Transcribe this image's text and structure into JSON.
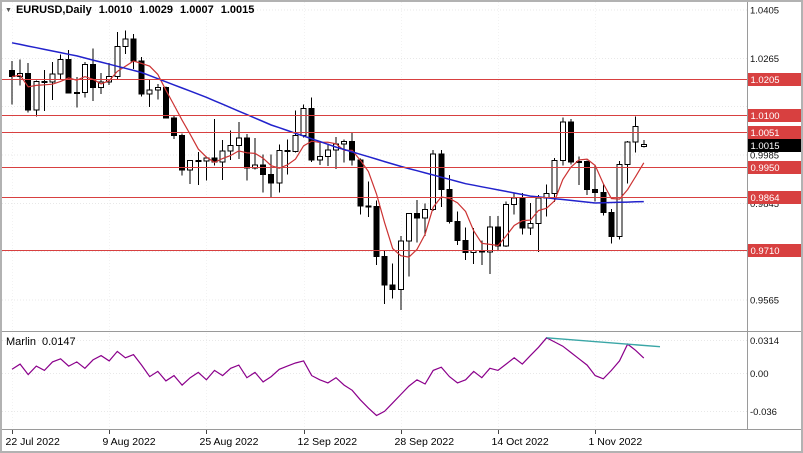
{
  "header": {
    "instrument": "EURUSD,Daily",
    "open": "1.0010",
    "high": "1.0029",
    "low": "1.0007",
    "close": "1.0015"
  },
  "indicator_header": {
    "name": "Marlin",
    "value": "0.0147"
  },
  "colors": {
    "level_line": "#d84040",
    "badge_bg": "#d84040",
    "badge_text": "#ffffff",
    "current_badge_bg": "#000000",
    "current_badge_text": "#ffffff",
    "bull_fill": "#ffffff",
    "bear_fill": "#000000",
    "candle_stroke": "#000000",
    "ma_fast": "#cc3333",
    "ma_slow": "#2222cc",
    "indicator_line": "#8b008b",
    "trend_line": "#3aa6a6",
    "grid": "#e8e8e8",
    "vgrid": "#f2f2f2",
    "axis_text": "#111111",
    "separator": "#9a9a9a",
    "frame": "#b2b2b2"
  },
  "chart_data": {
    "type": "candlestick",
    "title": "EURUSD,Daily",
    "symbol": "EURUSD",
    "timeframe": "Daily",
    "price_axis": {
      "visible_labels": [
        "1.0405",
        "1.0265",
        "0.9985",
        "0.9845",
        "0.9565"
      ],
      "grid_values": [
        1.0405,
        1.0265,
        1.0125,
        0.9985,
        0.9845,
        0.9705,
        0.9565
      ],
      "top_value": 1.0405,
      "bottom_value": 0.9565,
      "grid_step": 0.014
    },
    "x_axis": {
      "labels": [
        {
          "text": "22 Jul 2022",
          "index": 0
        },
        {
          "text": "9 Aug 2022",
          "index": 12
        },
        {
          "text": "25 Aug 2022",
          "index": 24
        },
        {
          "text": "12 Sep 2022",
          "index": 36
        },
        {
          "text": "28 Sep 2022",
          "index": 48
        },
        {
          "text": "14 Oct 2022",
          "index": 60
        },
        {
          "text": "1 Nov 2022",
          "index": 72
        }
      ]
    },
    "level_lines": [
      {
        "label": "1.0205",
        "value": 1.0205
      },
      {
        "label": "1.0100",
        "value": 1.01
      },
      {
        "label": "1.0051",
        "value": 1.0051
      },
      {
        "label": "0.9950",
        "value": 0.995
      },
      {
        "label": "0.9864",
        "value": 0.9864
      },
      {
        "label": "0.9710",
        "value": 0.971
      }
    ],
    "current_price": {
      "label": "1.0015",
      "value": 1.0015
    },
    "candles": [
      [
        1.023,
        1.0257,
        1.0131,
        1.0212
      ],
      [
        1.0212,
        1.0262,
        1.0186,
        1.0221
      ],
      [
        1.0221,
        1.0251,
        1.0108,
        1.0115
      ],
      [
        1.0115,
        1.0201,
        1.0097,
        1.0198
      ],
      [
        1.0198,
        1.0231,
        1.0113,
        1.0196
      ],
      [
        1.0196,
        1.0254,
        1.0144,
        1.022
      ],
      [
        1.022,
        1.0276,
        1.0205,
        1.0262
      ],
      [
        1.0262,
        1.0289,
        1.0163,
        1.0165
      ],
      [
        1.0165,
        1.0211,
        1.0123,
        1.0166
      ],
      [
        1.0166,
        1.0254,
        1.0151,
        1.0247
      ],
      [
        1.0247,
        1.0294,
        1.0141,
        1.0181
      ],
      [
        1.0181,
        1.0222,
        1.0161,
        1.0196
      ],
      [
        1.0196,
        1.0251,
        1.0188,
        1.0213
      ],
      [
        1.0213,
        1.0341,
        1.0203,
        1.0299
      ],
      [
        1.0299,
        1.0346,
        1.0277,
        1.0321
      ],
      [
        1.0321,
        1.0336,
        1.0234,
        1.0257
      ],
      [
        1.0257,
        1.0269,
        1.0154,
        1.0161
      ],
      [
        1.0161,
        1.0204,
        1.0124,
        1.0173
      ],
      [
        1.0173,
        1.019,
        1.0146,
        1.0181
      ],
      [
        1.0181,
        1.0184,
        1.0091,
        1.0092
      ],
      [
        1.0092,
        1.0099,
        1.0031,
        1.0042
      ],
      [
        1.0042,
        1.0047,
        0.9926,
        0.9941
      ],
      [
        0.9941,
        0.9971,
        0.9901,
        0.9969
      ],
      [
        0.9969,
        0.9993,
        0.9898,
        0.9967
      ],
      [
        0.9967,
        0.998,
        0.9911,
        0.9976
      ],
      [
        0.9976,
        1.009,
        0.9955,
        0.9965
      ],
      [
        0.9965,
        1.0029,
        0.9913,
        0.9997
      ],
      [
        0.9997,
        1.0056,
        0.9971,
        1.0013
      ],
      [
        1.0013,
        1.008,
        0.9973,
        1.0034
      ],
      [
        1.0034,
        1.0046,
        0.9911,
        0.9948
      ],
      [
        0.9948,
        1.0034,
        0.9943,
        0.9956
      ],
      [
        0.9956,
        0.9986,
        0.9877,
        0.9928
      ],
      [
        0.9928,
        0.9987,
        0.9864,
        0.9904
      ],
      [
        0.9904,
        1.0015,
        0.9876,
        0.9998
      ],
      [
        0.9998,
        1.003,
        0.9929,
        0.9995
      ],
      [
        0.9995,
        1.0114,
        0.9992,
        1.0041
      ],
      [
        1.0041,
        1.0131,
        1.0036,
        1.012
      ],
      [
        1.012,
        1.0152,
        0.9965,
        0.9971
      ],
      [
        0.9971,
        1.0024,
        0.9956,
        0.998
      ],
      [
        0.998,
        1.0018,
        0.9953,
        0.9999
      ],
      [
        0.9999,
        1.0037,
        0.9945,
        1.0017
      ],
      [
        1.0017,
        1.003,
        0.9963,
        1.0024
      ],
      [
        1.0024,
        1.0051,
        0.9954,
        0.9971
      ],
      [
        0.9971,
        0.9975,
        0.9812,
        0.9838
      ],
      [
        0.9838,
        0.9908,
        0.9806,
        0.9836
      ],
      [
        0.9836,
        0.9853,
        0.9666,
        0.9691
      ],
      [
        0.9691,
        0.971,
        0.9553,
        0.9609
      ],
      [
        0.9609,
        0.9671,
        0.9569,
        0.9595
      ],
      [
        0.9595,
        0.9751,
        0.9536,
        0.9736
      ],
      [
        0.9736,
        0.9817,
        0.9633,
        0.9815
      ],
      [
        0.9815,
        0.9854,
        0.9732,
        0.9803
      ],
      [
        0.9803,
        0.9845,
        0.9751,
        0.9827
      ],
      [
        0.9827,
        0.9999,
        0.9823,
        0.9988
      ],
      [
        0.9988,
        1.0,
        0.9834,
        0.9885
      ],
      [
        0.9885,
        0.9927,
        0.9786,
        0.9793
      ],
      [
        0.9793,
        0.9822,
        0.9725,
        0.9738
      ],
      [
        0.9738,
        0.9775,
        0.9681,
        0.9703
      ],
      [
        0.9703,
        0.9774,
        0.9669,
        0.9708
      ],
      [
        0.9708,
        0.9737,
        0.9667,
        0.9704
      ],
      [
        0.9704,
        0.9808,
        0.964,
        0.9777
      ],
      [
        0.9777,
        0.9808,
        0.9707,
        0.9722
      ],
      [
        0.9722,
        0.9851,
        0.9718,
        0.9841
      ],
      [
        0.9841,
        0.9876,
        0.9813,
        0.986
      ],
      [
        0.986,
        0.9875,
        0.9755,
        0.9773
      ],
      [
        0.9773,
        0.9846,
        0.9754,
        0.9786
      ],
      [
        0.9786,
        0.9869,
        0.9704,
        0.9861
      ],
      [
        0.9861,
        0.99,
        0.9807,
        0.9874
      ],
      [
        0.9874,
        0.9977,
        0.9849,
        0.9969
      ],
      [
        0.9969,
        1.0094,
        0.9954,
        1.008
      ],
      [
        1.008,
        1.009,
        0.9957,
        0.9965
      ],
      [
        0.9965,
        0.998,
        0.9898,
        0.9966
      ],
      [
        0.9966,
        0.9969,
        0.9869,
        0.9885
      ],
      [
        0.9885,
        0.9955,
        0.9851,
        0.9877
      ],
      [
        0.9877,
        0.99,
        0.981,
        0.9818
      ],
      [
        0.9818,
        0.9828,
        0.9729,
        0.9749
      ],
      [
        0.9749,
        0.9967,
        0.974,
        0.9958
      ],
      [
        0.9958,
        1.0026,
        0.9902,
        1.0022
      ],
      [
        1.0022,
        1.0097,
        0.9992,
        1.0068
      ],
      [
        1.001,
        1.0029,
        1.0007,
        1.0015
      ]
    ],
    "ma_fast": {
      "period": 5
    },
    "ma_slow_keyframes": [
      [
        0,
        1.031
      ],
      [
        8,
        1.0272
      ],
      [
        16,
        1.0224
      ],
      [
        24,
        1.0152
      ],
      [
        32,
        1.0072
      ],
      [
        40,
        1.0008
      ],
      [
        48,
        0.9952
      ],
      [
        56,
        0.9902
      ],
      [
        64,
        0.9866
      ],
      [
        72,
        0.9846
      ],
      [
        78,
        0.985
      ]
    ],
    "indicator": {
      "name": "Marlin",
      "current_value": 0.0147,
      "axis_labels": [
        {
          "text": "0.0314",
          "value": 0.0314
        },
        {
          "text": "0.00",
          "value": 0
        },
        {
          "text": "-0.036",
          "value": -0.036
        }
      ],
      "values": [
        0.004,
        0.009,
        -0.001,
        0.007,
        0.003,
        0.011,
        0.014,
        0.007,
        0.011,
        0.005,
        0.013,
        0.017,
        0.012,
        0.021,
        0.015,
        0.018,
        0.008,
        -0.003,
        0.002,
        -0.007,
        -0.002,
        -0.011,
        -0.004,
        0.001,
        -0.006,
        0.003,
        -0.002,
        0.005,
        0.008,
        -0.004,
        0.001,
        -0.008,
        -0.003,
        0.004,
        0.007,
        0.01,
        0.012,
        -0.002,
        -0.006,
        -0.009,
        -0.004,
        -0.011,
        -0.016,
        -0.025,
        -0.033,
        -0.04,
        -0.036,
        -0.028,
        -0.02,
        -0.012,
        -0.006,
        -0.01,
        0.003,
        0.006,
        -0.003,
        -0.009,
        -0.006,
        0.002,
        -0.004,
        0.005,
        0.003,
        0.009,
        0.015,
        0.009,
        0.017,
        0.025,
        0.034,
        0.03,
        0.026,
        0.02,
        0.014,
        0.008,
        -0.002,
        -0.005,
        0.003,
        0.012,
        0.028,
        0.022,
        0.0147
      ],
      "trendline": {
        "from_index": 66,
        "from_value": 0.034,
        "to_index": 80,
        "to_value": 0.0255
      }
    }
  }
}
